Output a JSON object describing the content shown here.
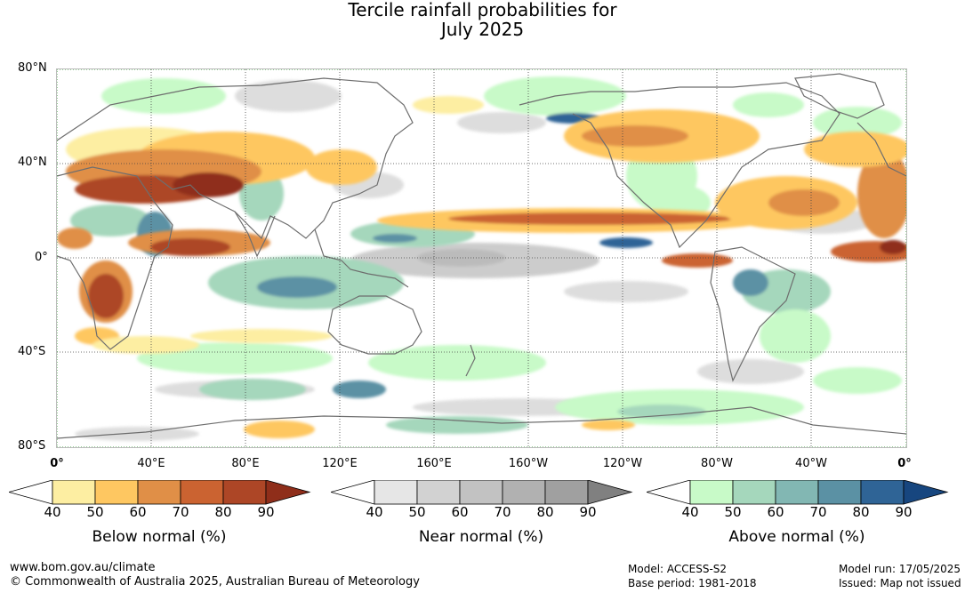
{
  "title": {
    "line1": "Tercile rainfall probabilities for",
    "line2": "July 2025"
  },
  "map": {
    "lat_labels": [
      "80°N",
      "40°N",
      "0°",
      "40°S",
      "80°S"
    ],
    "lon_labels": [
      "0°",
      "40°E",
      "80°E",
      "120°E",
      "160°E",
      "160°W",
      "120°W",
      "80°W",
      "40°W",
      "0°"
    ]
  },
  "legends": [
    {
      "title": "Below normal (%)",
      "ticks": [
        "40",
        "50",
        "60",
        "70",
        "80",
        "90"
      ],
      "colors": [
        "#ffffff",
        "#fdeea2",
        "#fec761",
        "#e08f47",
        "#cb6331",
        "#ad4626",
        "#8f2e1a"
      ]
    },
    {
      "title": "Near normal (%)",
      "ticks": [
        "40",
        "50",
        "60",
        "70",
        "80",
        "90"
      ],
      "colors": [
        "#ffffff",
        "#e6e6e6",
        "#d2d2d2",
        "#c2c2c2",
        "#b1b1b1",
        "#a0a0a0",
        "#808080"
      ]
    },
    {
      "title": "Above normal (%)",
      "ticks": [
        "40",
        "50",
        "60",
        "70",
        "80",
        "90"
      ],
      "colors": [
        "#ffffff",
        "#c8fac8",
        "#a5d7bc",
        "#82b7b3",
        "#5b91a4",
        "#2f6496",
        "#17467f"
      ]
    }
  ],
  "footer": {
    "url": "www.bom.gov.au/climate",
    "copyright": "© Commonwealth of Australia 2025, Australian Bureau of Meteorology",
    "model": "Model: ACCESS-S2",
    "base_period": "Base period: 1981-2018",
    "model_run": "Model run: 17/05/2025",
    "issued": "Issued: Map not issued"
  }
}
